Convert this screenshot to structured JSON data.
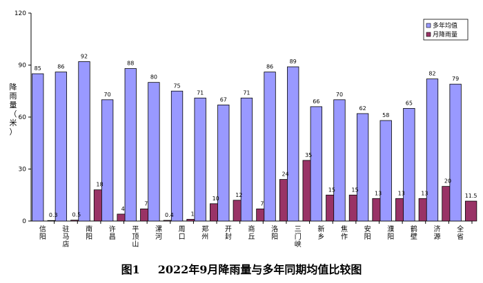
{
  "chart_data": {
    "type": "bar",
    "categories": [
      "信阳",
      "驻马店",
      "南阳",
      "许昌",
      "平顶山",
      "漯河",
      "周口",
      "郑州",
      "开封",
      "商丘",
      "洛阳",
      "三门峡",
      "新乡",
      "焦作",
      "安阳",
      "濮阳",
      "鹤壁",
      "济源",
      "全省"
    ],
    "series": [
      {
        "name": "多年均值",
        "color": "#9999ff",
        "values": [
          85,
          86,
          92,
          70,
          88,
          80,
          75,
          71,
          67,
          71,
          86,
          89,
          66,
          70,
          62,
          58,
          65,
          82,
          79
        ],
        "labels": [
          "85",
          "86",
          "92",
          "70",
          "88",
          "80",
          "75",
          "71",
          "67",
          "71",
          "86",
          "89",
          "66",
          "70",
          "62",
          "58",
          "65",
          "82",
          "79"
        ]
      },
      {
        "name": "月降雨量",
        "color": "#993366",
        "values": [
          0.3,
          0.5,
          18,
          4,
          7,
          0.4,
          1,
          10,
          12,
          7,
          24,
          35,
          15,
          15,
          13,
          13,
          13,
          20,
          11.5
        ],
        "labels": [
          "0.3",
          "0.5",
          "18",
          "4",
          "7",
          "0.4",
          "1",
          "10",
          "12",
          "7",
          "24",
          "35",
          "15",
          "15",
          "13",
          "13",
          "13",
          "20",
          "11.5"
        ]
      }
    ],
    "yticks": [
      "0",
      "30",
      "60",
      "90",
      "120"
    ],
    "ylim": [
      0,
      120
    ],
    "ylabel": "降雨量（米）",
    "legend_position": "top-right",
    "grid": false
  },
  "caption": {
    "figure_no": "图1",
    "title": "2022年9月降雨量与多年同期均值比较图"
  }
}
